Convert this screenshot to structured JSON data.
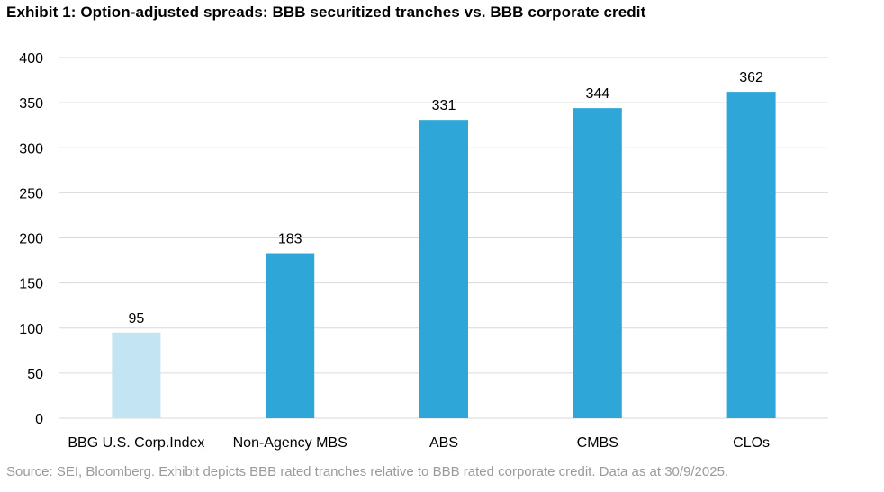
{
  "title": "Exhibit 1: Option-adjusted spreads: BBB securitized tranches vs. BBB corporate credit",
  "source": "Source: SEI, Bloomberg. Exhibit depicts BBB rated tranches relative to BBB rated corporate credit. Data as at 30/9/2025.",
  "chart_data": {
    "type": "bar",
    "categories": [
      "BBG U.S. Corp.Index",
      "Non-Agency MBS",
      "ABS",
      "CMBS",
      "CLOs"
    ],
    "values": [
      95,
      183,
      331,
      344,
      362
    ],
    "data_labels": [
      "95",
      "183",
      "331",
      "344",
      "362"
    ],
    "bar_colors": [
      "#c3e4f3",
      "#2ea6d8",
      "#2ea6d8",
      "#2ea6d8",
      "#2ea6d8"
    ],
    "ylim": [
      0,
      400
    ],
    "yticks": [
      0,
      50,
      100,
      150,
      200,
      250,
      300,
      350,
      400
    ],
    "grid": true,
    "gridline_color": "#d9d9d9",
    "legend": "none"
  }
}
